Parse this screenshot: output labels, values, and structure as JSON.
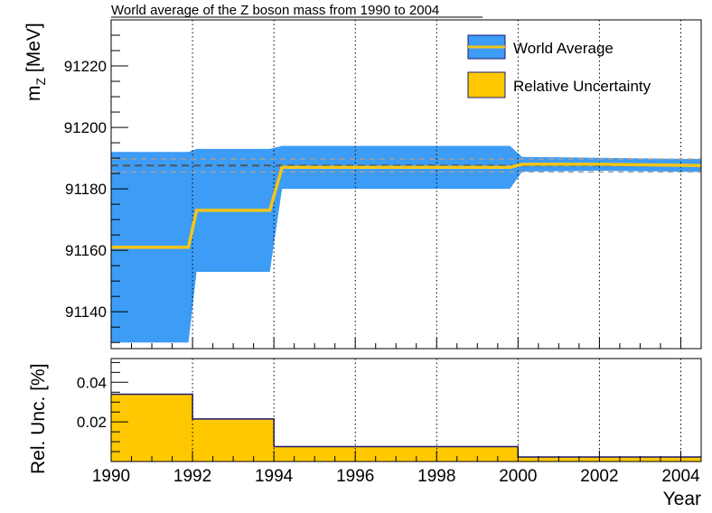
{
  "chart_data": [
    {
      "type": "line",
      "title": "World average of the Z boson mass from 1990 to 2004",
      "xlabel": "",
      "ylabel": "m_Z [MeV]",
      "ylabel_main": "m",
      "ylabel_sub": "Z",
      "ylabel_unit": " [MeV]",
      "xlim": [
        1990,
        2004.5
      ],
      "ylim": [
        91128,
        91235
      ],
      "yticks": [
        91140,
        91160,
        91180,
        91200,
        91220
      ],
      "grid_x": [
        1992,
        1994,
        1996,
        1998,
        2000,
        2002,
        2004
      ],
      "reference_value": 91187.6,
      "reference_band": [
        91185.5,
        91189.7
      ],
      "series": [
        {
          "name": "World Average",
          "color": "#f5c518",
          "band_color": "#3d9cf5",
          "points": [
            {
              "x": 1990.0,
              "y": 91161,
              "err": 31
            },
            {
              "x": 1991.9,
              "y": 91161,
              "err": 31
            },
            {
              "x": 1992.1,
              "y": 91173,
              "err": 20
            },
            {
              "x": 1993.9,
              "y": 91173,
              "err": 20
            },
            {
              "x": 1994.2,
              "y": 91187,
              "err": 7
            },
            {
              "x": 1999.8,
              "y": 91187,
              "err": 7
            },
            {
              "x": 2000.1,
              "y": 91188,
              "err": 2.4
            },
            {
              "x": 2002.0,
              "y": 91188,
              "err": 2.1
            },
            {
              "x": 2004.5,
              "y": 91187.6,
              "err": 2.1
            }
          ]
        }
      ],
      "legend": [
        "World Average",
        "Relative Uncertainty"
      ],
      "legend_position": "top-right"
    },
    {
      "type": "area",
      "title": "",
      "xlabel": "Year",
      "ylabel": "Rel. Unc. [%]",
      "xlim": [
        1990,
        2004.5
      ],
      "ylim": [
        0,
        0.052
      ],
      "yticks": [
        0.02,
        0.04
      ],
      "ytick_labels": [
        "0.02",
        "0.04"
      ],
      "xticks": [
        1990,
        1992,
        1994,
        1996,
        1998,
        2000,
        2002,
        2004
      ],
      "grid_x": [
        1992,
        1994,
        1996,
        1998,
        2000,
        2002,
        2004
      ],
      "series": [
        {
          "name": "Relative Uncertainty",
          "color": "#ffc800",
          "steps": [
            {
              "x0": 1990,
              "x1": 1992,
              "y": 0.034
            },
            {
              "x0": 1992,
              "x1": 1994,
              "y": 0.0215
            },
            {
              "x0": 1994,
              "x1": 2000,
              "y": 0.0075
            },
            {
              "x0": 2000,
              "x1": 2004.5,
              "y": 0.0023
            }
          ]
        }
      ]
    }
  ]
}
